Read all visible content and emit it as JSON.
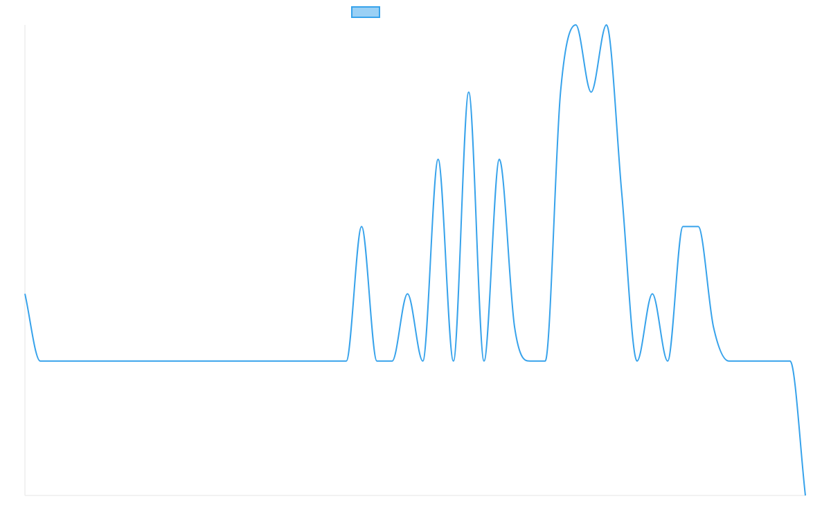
{
  "chart_data": {
    "type": "line",
    "title": "",
    "xlabel": "",
    "ylabel": "",
    "x": [
      0,
      1,
      2,
      3,
      4,
      5,
      6,
      7,
      8,
      9,
      10,
      11,
      12,
      13,
      14,
      15,
      16,
      17,
      18,
      19,
      20,
      21,
      22,
      23,
      24,
      25,
      26,
      27,
      28,
      29,
      30,
      31,
      32,
      33,
      34,
      35,
      36,
      37,
      38,
      39,
      40,
      41,
      42,
      43,
      44,
      45,
      46,
      47,
      48,
      49,
      50,
      51
    ],
    "series": [
      {
        "name": "",
        "color": "#36a2eb",
        "fill": "#9ad0f5",
        "values": [
          4,
          2,
          2,
          2,
          2,
          2,
          2,
          2,
          2,
          2,
          2,
          2,
          2,
          2,
          2,
          2,
          2,
          2,
          2,
          2,
          2,
          2,
          6,
          2,
          2,
          4,
          2,
          8,
          2,
          10,
          2,
          8,
          3,
          2,
          2,
          10,
          12,
          10,
          12,
          7,
          2,
          4,
          2,
          6,
          6,
          3,
          2,
          2,
          2,
          2,
          2,
          -2
        ]
      }
    ],
    "ylim": [
      -2,
      12
    ],
    "grid": false,
    "legend": "top-center"
  }
}
